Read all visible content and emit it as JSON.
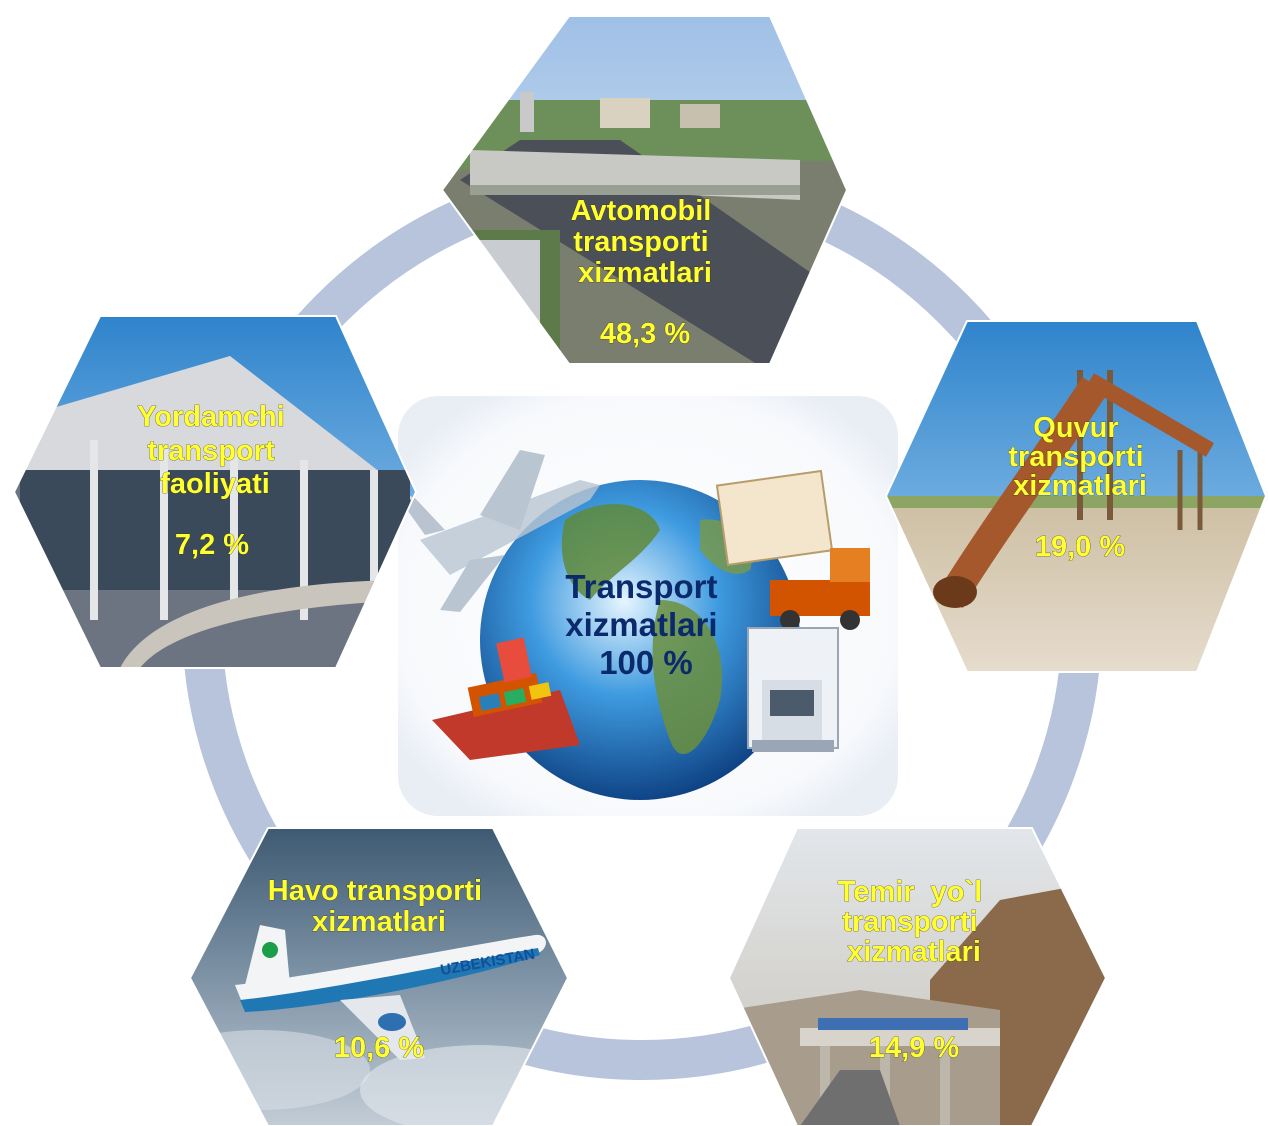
{
  "center": {
    "lines": [
      "Transport",
      "xizmatlari",
      "100 %"
    ]
  },
  "segments": [
    {
      "key": "avtomobil",
      "title_lines": [
        "Avtomobil",
        "transporti",
        "xizmatlari"
      ],
      "percent_label": "48,3 %",
      "share": 48.3,
      "image_theme": "city-highway-photo"
    },
    {
      "key": "quvur",
      "title_lines": [
        "Quvur",
        "transporti",
        "xizmatlari"
      ],
      "percent_label": "19,0 %",
      "share": 19.0,
      "image_theme": "pipeline-photo"
    },
    {
      "key": "temir-yol",
      "title_lines": [
        "Temir  yo`l",
        "transporti",
        "xizmatlari"
      ],
      "percent_label": "14,9 %",
      "share": 14.9,
      "image_theme": "railway-bridge-photo"
    },
    {
      "key": "havo",
      "title_lines": [
        "Havo transporti",
        "xizmatlari"
      ],
      "percent_label": "10,6 %",
      "share": 10.6,
      "image_theme": "airplane-in-clouds-photo"
    },
    {
      "key": "yordamchi",
      "title_lines": [
        "Yordamchi",
        "transport",
        "faoliyati"
      ],
      "percent_label": "7,2 %",
      "share": 7.2,
      "image_theme": "airport-terminal-photo"
    }
  ],
  "logo_text": "UZBEKISTAN",
  "colors": {
    "ring": "#b7c4dc",
    "label_text": "#ffff33",
    "center_text": "#0b2a6b"
  }
}
